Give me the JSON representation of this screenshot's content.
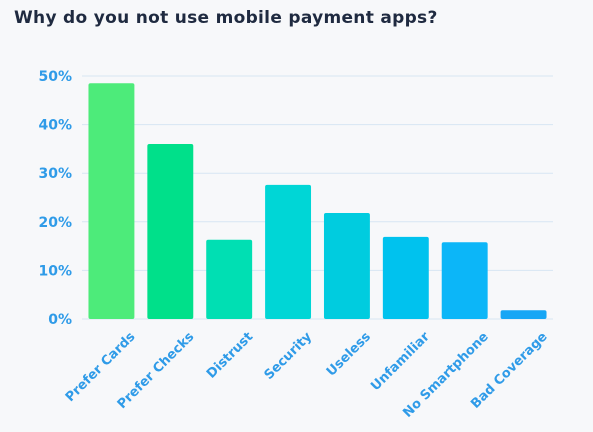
{
  "chart_data": {
    "type": "bar",
    "title": "Why do you not use mobile payment apps?",
    "xlabel": "",
    "ylabel": "",
    "ylim": [
      0,
      50
    ],
    "yticks": [
      "0%",
      "10%",
      "20%",
      "30%",
      "40%",
      "50%"
    ],
    "categories": [
      "Prefer Cards",
      "Prefer Checks",
      "Distrust",
      "Security",
      "Useless",
      "Unfamiliar",
      "No Smartphone",
      "Bad Coverage"
    ],
    "values": [
      48.5,
      36,
      16.3,
      27.6,
      21.8,
      16.9,
      15.8,
      1.8
    ],
    "colors": [
      "#4deb7a",
      "#00e08a",
      "#00dfb3",
      "#00d6d6",
      "#00ccdf",
      "#00c2ee",
      "#0cb6f8",
      "#16a6f5"
    ],
    "grid": true
  }
}
